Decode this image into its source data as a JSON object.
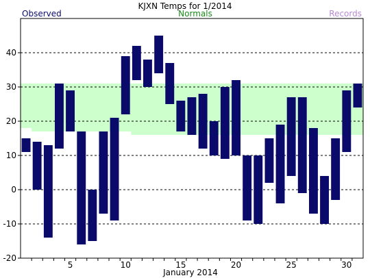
{
  "chart_data": {
    "type": "bar",
    "title": "KJXN Temps for  1/2014",
    "legend": [
      {
        "label": "Observed",
        "color": "#0a0a6b"
      },
      {
        "label": "Normals",
        "color": "#1a8a1a"
      },
      {
        "label": "Records",
        "color": "#b58ad6"
      }
    ],
    "xlabel": "January 2014",
    "ylabel": "",
    "ylim": [
      -20,
      50
    ],
    "yticks": [
      -20,
      -10,
      0,
      10,
      20,
      30,
      40
    ],
    "xticks": [
      5,
      10,
      15,
      20,
      25,
      30
    ],
    "days": [
      1,
      2,
      3,
      4,
      5,
      6,
      7,
      8,
      9,
      10,
      11,
      12,
      13,
      14,
      15,
      16,
      17,
      18,
      19,
      20,
      21,
      22,
      23,
      24,
      25,
      26,
      27,
      28,
      29,
      30,
      31
    ],
    "series": [
      {
        "name": "Observed",
        "kind": "range",
        "low": [
          11,
          0,
          -14,
          12,
          17,
          -16,
          -15,
          -7,
          -9,
          22,
          32,
          30,
          34,
          25,
          17,
          16,
          12,
          10,
          9,
          10,
          -9,
          -10,
          2,
          -4,
          4,
          -1,
          -7,
          -10,
          -3,
          11,
          24
        ],
        "high": [
          15,
          14,
          13,
          31,
          29,
          17,
          0,
          17,
          21,
          39,
          42,
          38,
          45,
          37,
          26,
          27,
          28,
          20,
          30,
          32,
          10,
          10,
          15,
          19,
          27,
          27,
          18,
          4,
          15,
          29,
          31
        ]
      },
      {
        "name": "Normals",
        "kind": "band",
        "low": [
          18,
          17,
          17,
          17,
          17,
          17,
          17,
          17,
          17,
          17,
          16,
          16,
          16,
          16,
          16,
          16,
          16,
          16,
          16,
          16,
          16,
          16,
          16,
          16,
          16,
          16,
          16,
          16,
          16,
          16,
          16
        ],
        "high": [
          31,
          31,
          31,
          31,
          31,
          31,
          31,
          31,
          31,
          31,
          31,
          31,
          31,
          31,
          31,
          31,
          31,
          31,
          31,
          31,
          31,
          31,
          31,
          31,
          31,
          31,
          31,
          31,
          31,
          31,
          31
        ]
      }
    ],
    "grid": true,
    "colors": {
      "observed": "#0a0a6b",
      "normals_fill": "#ccffcc",
      "grid": "#000000",
      "axis": "#000000"
    }
  }
}
